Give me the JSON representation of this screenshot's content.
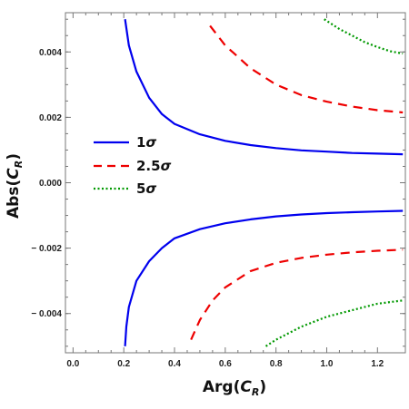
{
  "chart_data": {
    "type": "line",
    "title": "",
    "xlabel": "Arg(C_R)",
    "xlabel_parts": {
      "main": "Arg(",
      "var": "C",
      "sub": "R",
      "close": ")"
    },
    "ylabel": "Abs(C_R)",
    "ylabel_parts": {
      "main": "Abs(",
      "var": "C",
      "sub": "R",
      "close": ")"
    },
    "xlim": [
      -0.03,
      1.31
    ],
    "ylim": [
      -0.0052,
      0.0052
    ],
    "x_ticks": [
      0.0,
      0.2,
      0.4,
      0.6,
      0.8,
      1.0,
      1.2
    ],
    "x_tick_labels": [
      "0.0",
      "0.2",
      "0.4",
      "0.6",
      "0.8",
      "1.0",
      "1.2"
    ],
    "y_ticks": [
      0.004,
      0.002,
      0.0,
      -0.002,
      -0.004
    ],
    "y_tick_labels": [
      "0.004",
      "0.002",
      "0.000",
      "− 0.002",
      "− 0.004"
    ],
    "grid": false,
    "legend_position": "middle-left",
    "series": [
      {
        "name": "1σ",
        "name_parts": {
          "num": "1",
          "sym": "σ"
        },
        "color": "#0000ee",
        "dash": "solid",
        "branches": [
          {
            "x": [
              0.205,
              0.22,
              0.25,
              0.3,
              0.35,
              0.4,
              0.5,
              0.6,
              0.7,
              0.8,
              0.9,
              1.0,
              1.1,
              1.2,
              1.3
            ],
            "y": [
              0.005,
              0.0042,
              0.0034,
              0.0026,
              0.0021,
              0.0018,
              0.00148,
              0.00128,
              0.00115,
              0.00106,
              0.00099,
              0.00095,
              0.00091,
              0.00089,
              0.00087
            ]
          },
          {
            "x": [
              0.205,
              0.21,
              0.22,
              0.25,
              0.3,
              0.35,
              0.4,
              0.5,
              0.6,
              0.7,
              0.8,
              0.9,
              1.0,
              1.1,
              1.2,
              1.3
            ],
            "y": [
              -0.005,
              -0.0044,
              -0.0038,
              -0.003,
              -0.0024,
              -0.002,
              -0.0017,
              -0.00142,
              -0.00124,
              -0.00112,
              -0.00103,
              -0.00097,
              -0.00093,
              -0.0009,
              -0.00088,
              -0.00086
            ]
          }
        ]
      },
      {
        "name": "2.5σ",
        "name_parts": {
          "num": "2.5",
          "sym": "σ"
        },
        "color": "#ee0000",
        "dash": "dashed",
        "branches": [
          {
            "x": [
              0.54,
              0.6,
              0.7,
              0.8,
              0.9,
              1.0,
              1.1,
              1.2,
              1.3
            ],
            "y": [
              0.0048,
              0.0042,
              0.0035,
              0.003,
              0.00268,
              0.00248,
              0.00233,
              0.00222,
              0.00215
            ]
          },
          {
            "x": [
              0.465,
              0.5,
              0.55,
              0.6,
              0.7,
              0.8,
              0.9,
              1.0,
              1.1,
              1.2,
              1.3
            ],
            "y": [
              -0.0048,
              -0.0042,
              -0.0036,
              -0.0032,
              -0.0027,
              -0.00245,
              -0.0023,
              -0.0022,
              -0.00213,
              -0.00208,
              -0.00205
            ]
          }
        ]
      },
      {
        "name": "5σ",
        "name_parts": {
          "num": "5",
          "sym": "σ"
        },
        "color": "#009900",
        "dash": "dotted",
        "branches": [
          {
            "x": [
              0.99,
              1.05,
              1.1,
              1.15,
              1.2,
              1.25,
              1.3
            ],
            "y": [
              0.005,
              0.0047,
              0.0045,
              0.0043,
              0.00415,
              0.00402,
              0.00395
            ]
          },
          {
            "x": [
              0.76,
              0.8,
              0.9,
              1.0,
              1.1,
              1.2,
              1.3
            ],
            "y": [
              -0.005,
              -0.0048,
              -0.0044,
              -0.0041,
              -0.0039,
              -0.0037,
              -0.0036
            ]
          }
        ]
      }
    ]
  }
}
